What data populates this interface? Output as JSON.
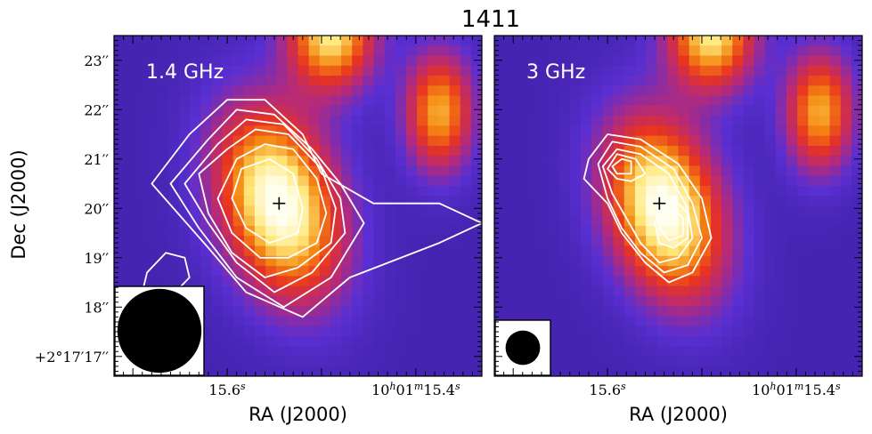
{
  "chart_data": {
    "type": "heatmap",
    "title": "1411",
    "ylabel": "Dec (J2000)",
    "y_ticks": [
      "23′′",
      "22′′",
      "21′′",
      "20′′",
      "19′′",
      "18′′",
      "+2°17′17′′"
    ],
    "y_tick_values_arcsec": [
      23,
      22,
      21,
      20,
      19,
      18,
      17
    ],
    "ylim_arcsec": [
      16.6,
      23.5
    ],
    "colormap": [
      "#3a1e9e",
      "#5a2fd2",
      "#b52a7a",
      "#e8331f",
      "#f48a12",
      "#ffe87a",
      "#fffff0"
    ],
    "contour_color": "#ffffff",
    "marker": "+",
    "panels": [
      {
        "label": "1.4 GHz",
        "xlabel": "RA (J2000)",
        "x_ticks": [
          "15.6s",
          "10h01m15.4s"
        ],
        "x_tick_values_s": [
          15.6,
          15.4
        ],
        "xlim_s": [
          15.72,
          15.33
        ],
        "marker_radec": [
          15.545,
          20.1
        ],
        "sources": [
          {
            "ra_s": 15.545,
            "dec": 20.1,
            "amp": 1.0,
            "sigma_ra": 0.04,
            "sigma_dec": 1.05,
            "angle_deg": 35
          },
          {
            "ra_s": 15.49,
            "dec": 23.55,
            "amp": 0.82,
            "sigma_ra": 0.032,
            "sigma_dec": 0.6,
            "angle_deg": 0
          },
          {
            "ra_s": 15.375,
            "dec": 21.95,
            "amp": 0.68,
            "sigma_ra": 0.025,
            "sigma_dec": 0.62,
            "angle_deg": 0
          }
        ],
        "contours": [
          [
            [
              15.64,
              21.5
            ],
            [
              15.6,
              22.2
            ],
            [
              15.56,
              22.2
            ],
            [
              15.52,
              21.5
            ],
            [
              15.5,
              20.7
            ],
            [
              15.445,
              20.1
            ],
            [
              15.375,
              20.1
            ],
            [
              15.33,
              19.7
            ],
            [
              15.375,
              19.3
            ],
            [
              15.47,
              18.6
            ],
            [
              15.52,
              17.8
            ],
            [
              15.58,
              18.3
            ],
            [
              15.62,
              19.2
            ],
            [
              15.68,
              20.5
            ]
          ],
          [
            [
              15.62,
              21.4
            ],
            [
              15.59,
              22.0
            ],
            [
              15.55,
              21.9
            ],
            [
              15.51,
              21.2
            ],
            [
              15.48,
              20.5
            ],
            [
              15.455,
              19.7
            ],
            [
              15.49,
              18.6
            ],
            [
              15.54,
              18.0
            ],
            [
              15.59,
              18.6
            ],
            [
              15.63,
              19.6
            ],
            [
              15.66,
              20.5
            ]
          ],
          [
            [
              15.61,
              21.3
            ],
            [
              15.58,
              21.8
            ],
            [
              15.54,
              21.7
            ],
            [
              15.505,
              21.0
            ],
            [
              15.48,
              20.2
            ],
            [
              15.475,
              19.5
            ],
            [
              15.51,
              18.7
            ],
            [
              15.55,
              18.3
            ],
            [
              15.59,
              18.9
            ],
            [
              15.62,
              19.7
            ],
            [
              15.645,
              20.5
            ]
          ],
          [
            [
              15.6,
              21.2
            ],
            [
              15.57,
              21.6
            ],
            [
              15.535,
              21.5
            ],
            [
              15.5,
              20.8
            ],
            [
              15.485,
              20.0
            ],
            [
              15.49,
              19.3
            ],
            [
              15.525,
              18.8
            ],
            [
              15.56,
              18.6
            ],
            [
              15.595,
              19.1
            ],
            [
              15.62,
              19.9
            ],
            [
              15.63,
              20.7
            ]
          ],
          [
            [
              15.59,
              21.0
            ],
            [
              15.56,
              21.3
            ],
            [
              15.53,
              21.2
            ],
            [
              15.505,
              20.6
            ],
            [
              15.495,
              19.9
            ],
            [
              15.505,
              19.3
            ],
            [
              15.535,
              19.0
            ],
            [
              15.565,
              19.0
            ],
            [
              15.595,
              19.5
            ],
            [
              15.61,
              20.2
            ]
          ],
          [
            [
              15.585,
              20.8
            ],
            [
              15.555,
              21.0
            ],
            [
              15.53,
              20.7
            ],
            [
              15.52,
              20.0
            ],
            [
              15.525,
              19.5
            ],
            [
              15.555,
              19.3
            ],
            [
              15.58,
              19.6
            ],
            [
              15.595,
              20.2
            ]
          ],
          [
            [
              15.685,
              18.7
            ],
            [
              15.665,
              19.1
            ],
            [
              15.645,
              19.0
            ],
            [
              15.64,
              18.6
            ],
            [
              15.655,
              18.3
            ],
            [
              15.67,
              18.2
            ],
            [
              15.69,
              18.3
            ]
          ]
        ],
        "beam_radius_arcsec": 0.85
      },
      {
        "label": "3 GHz",
        "xlabel": "RA (J2000)",
        "x_ticks": [
          "15.6s",
          "10h01m15.4s"
        ],
        "x_tick_values_s": [
          15.6,
          15.4
        ],
        "xlim_s": [
          15.72,
          15.33
        ],
        "marker_radec": [
          15.545,
          20.1
        ],
        "sources": [
          {
            "ra_s": 15.54,
            "dec": 20.0,
            "amp": 1.0,
            "sigma_ra": 0.038,
            "sigma_dec": 1.0,
            "angle_deg": 35
          },
          {
            "ra_s": 15.49,
            "dec": 23.55,
            "amp": 0.82,
            "sigma_ra": 0.032,
            "sigma_dec": 0.6,
            "angle_deg": 0
          },
          {
            "ra_s": 15.375,
            "dec": 21.95,
            "amp": 0.68,
            "sigma_ra": 0.025,
            "sigma_dec": 0.62,
            "angle_deg": 0
          }
        ],
        "contours": [
          [
            [
              15.62,
              21.0
            ],
            [
              15.6,
              21.5
            ],
            [
              15.565,
              21.4
            ],
            [
              15.525,
              20.9
            ],
            [
              15.5,
              20.2
            ],
            [
              15.49,
              19.4
            ],
            [
              15.51,
              18.7
            ],
            [
              15.535,
              18.5
            ],
            [
              15.56,
              18.9
            ],
            [
              15.585,
              19.5
            ],
            [
              15.6,
              20.1
            ],
            [
              15.625,
              20.6
            ]
          ],
          [
            [
              15.61,
              20.9
            ],
            [
              15.595,
              21.35
            ],
            [
              15.565,
              21.25
            ],
            [
              15.53,
              20.8
            ],
            [
              15.51,
              20.1
            ],
            [
              15.5,
              19.4
            ],
            [
              15.515,
              18.85
            ],
            [
              15.54,
              18.7
            ],
            [
              15.565,
              19.1
            ],
            [
              15.585,
              19.6
            ],
            [
              15.6,
              20.2
            ]
          ],
          [
            [
              15.605,
              20.85
            ],
            [
              15.59,
              21.2
            ],
            [
              15.565,
              21.1
            ],
            [
              15.535,
              20.7
            ],
            [
              15.515,
              20.0
            ],
            [
              15.51,
              19.4
            ],
            [
              15.525,
              19.0
            ],
            [
              15.545,
              18.9
            ],
            [
              15.565,
              19.3
            ],
            [
              15.58,
              19.8
            ],
            [
              15.595,
              20.3
            ]
          ],
          [
            [
              15.6,
              20.8
            ],
            [
              15.59,
              21.1
            ],
            [
              15.57,
              21.0
            ],
            [
              15.56,
              20.7
            ],
            [
              15.575,
              20.55
            ],
            [
              15.59,
              20.6
            ]
          ],
          [
            [
              15.595,
              20.85
            ],
            [
              15.585,
              21.0
            ],
            [
              15.575,
              20.95
            ],
            [
              15.575,
              20.7
            ],
            [
              15.59,
              20.7
            ]
          ],
          [
            [
              15.545,
              20.0
            ],
            [
              15.53,
              20.2
            ],
            [
              15.515,
              19.9
            ],
            [
              15.515,
              19.4
            ],
            [
              15.53,
              19.2
            ],
            [
              15.545,
              19.3
            ],
            [
              15.55,
              19.7
            ]
          ],
          [
            [
              15.54,
              19.9
            ],
            [
              15.53,
              20.0
            ],
            [
              15.52,
              19.8
            ],
            [
              15.52,
              19.45
            ],
            [
              15.535,
              19.35
            ],
            [
              15.545,
              19.6
            ]
          ]
        ],
        "beam_radius_arcsec": 0.35
      }
    ]
  }
}
